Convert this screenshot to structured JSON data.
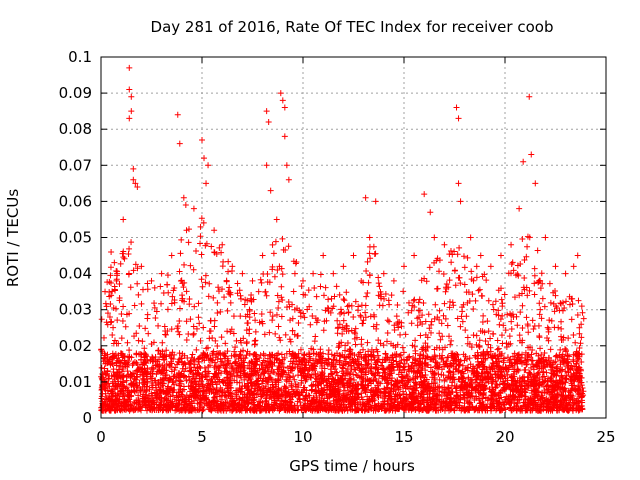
{
  "chart_data": {
    "type": "scatter",
    "title": "Day 281 of 2016, Rate Of TEC Index for receiver coob",
    "xlabel": "GPS time / hours",
    "ylabel": "ROTI / TECUs",
    "xlim": [
      0,
      25
    ],
    "ylim": [
      0,
      0.1
    ],
    "x_ticks": [
      0,
      5,
      10,
      15,
      20,
      25
    ],
    "x_tick_labels": [
      "0",
      "5",
      "10",
      "15",
      "20",
      "25"
    ],
    "y_ticks": [
      0,
      0.01,
      0.02,
      0.03,
      0.04,
      0.05,
      0.06,
      0.07,
      0.08,
      0.09,
      0.1
    ],
    "y_tick_labels": [
      "0",
      "0.01",
      "0.02",
      "0.03",
      "0.04",
      "0.05",
      "0.06",
      "0.07",
      "0.08",
      "0.09",
      "0.1"
    ],
    "grid": true,
    "marker": "+",
    "color": "#ff0000",
    "series": [
      {
        "name": "ROTI",
        "x": [
          1.4,
          1.4,
          1.4,
          1.5,
          1.5,
          1.6,
          1.6,
          1.7,
          1.8,
          3.8,
          3.9,
          4.1,
          4.2,
          5.0,
          5.1,
          5.2,
          5.3,
          8.2,
          8.3,
          8.2,
          8.4,
          8.9,
          9.0,
          9.1,
          9.1,
          9.2,
          9.3,
          13.1,
          13.6,
          16.0,
          16.3,
          17.6,
          17.7,
          17.7,
          17.8,
          20.7,
          20.9,
          21.2,
          21.3,
          21.5,
          22.0,
          23.6,
          0.2,
          0.5,
          0.8,
          1.1,
          2.0,
          2.5,
          3.0,
          3.5,
          4.6,
          5.6,
          6.0,
          6.5,
          7.0,
          7.5,
          8.0,
          8.7,
          9.6,
          10.0,
          10.5,
          11.0,
          11.5,
          12.0,
          12.5,
          13.3,
          14.0,
          14.5,
          15.0,
          15.5,
          16.5,
          17.0,
          18.3,
          18.8,
          19.3,
          19.8,
          20.3,
          22.5,
          23.0,
          23.4
        ],
        "y": [
          0.097,
          0.091,
          0.083,
          0.089,
          0.085,
          0.069,
          0.066,
          0.065,
          0.064,
          0.084,
          0.076,
          0.061,
          0.059,
          0.077,
          0.072,
          0.065,
          0.07,
          0.085,
          0.082,
          0.07,
          0.063,
          0.09,
          0.088,
          0.086,
          0.078,
          0.07,
          0.066,
          0.061,
          0.06,
          0.062,
          0.057,
          0.086,
          0.083,
          0.065,
          0.06,
          0.058,
          0.071,
          0.089,
          0.073,
          0.065,
          0.05,
          0.045,
          0.035,
          0.046,
          0.04,
          0.055,
          0.042,
          0.038,
          0.04,
          0.045,
          0.058,
          0.052,
          0.048,
          0.042,
          0.04,
          0.038,
          0.045,
          0.055,
          0.04,
          0.038,
          0.04,
          0.045,
          0.04,
          0.042,
          0.045,
          0.05,
          0.04,
          0.038,
          0.042,
          0.045,
          0.05,
          0.048,
          0.05,
          0.045,
          0.042,
          0.045,
          0.048,
          0.042,
          0.04,
          0.042
        ]
      }
    ],
    "background_envelope": {
      "x": [
        0,
        0.5,
        1,
        1.5,
        2,
        2.5,
        3,
        3.5,
        4,
        4.5,
        5,
        5.5,
        6,
        6.5,
        7,
        7.5,
        8,
        8.5,
        9,
        9.5,
        10,
        10.5,
        11,
        11.5,
        12,
        12.5,
        13,
        13.5,
        14,
        14.5,
        15,
        15.5,
        16,
        16.5,
        17,
        17.5,
        18,
        18.5,
        19,
        19.5,
        20,
        20.5,
        21,
        21.5,
        22,
        22.5,
        23,
        23.5,
        23.9
      ],
      "y_max": [
        0.032,
        0.042,
        0.046,
        0.05,
        0.04,
        0.036,
        0.038,
        0.042,
        0.05,
        0.055,
        0.058,
        0.05,
        0.046,
        0.042,
        0.036,
        0.034,
        0.04,
        0.05,
        0.052,
        0.045,
        0.04,
        0.036,
        0.042,
        0.038,
        0.036,
        0.034,
        0.046,
        0.05,
        0.038,
        0.035,
        0.036,
        0.034,
        0.04,
        0.046,
        0.042,
        0.05,
        0.05,
        0.045,
        0.04,
        0.036,
        0.038,
        0.046,
        0.052,
        0.05,
        0.04,
        0.036,
        0.033,
        0.038,
        0.03
      ],
      "y_min": 0.002,
      "dense_max": 0.018
    }
  }
}
